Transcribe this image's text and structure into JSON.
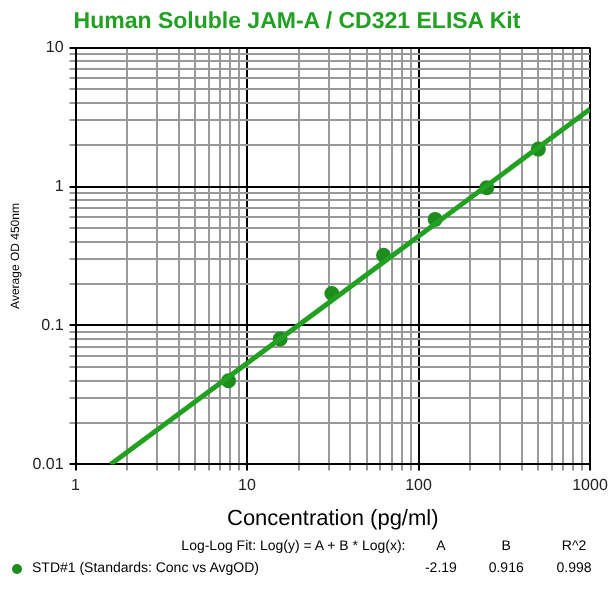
{
  "chart_data": {
    "type": "scatter",
    "title": "Human Soluble JAM-A / CD321 ELISA Kit",
    "xlabel": "Concentration (pg/ml)",
    "ylabel": "Average OD 450nm",
    "log": "xy",
    "grid": true,
    "legend": "bottom",
    "marker": "circle",
    "xlim": [
      1,
      1000
    ],
    "ylim": [
      0.01,
      10
    ],
    "xticks": [
      1,
      {
        "value": 2,
        "label": null
      },
      {
        "value": 3,
        "label": null
      },
      {
        "value": 4,
        "label": null
      },
      {
        "value": 5,
        "label": null
      },
      {
        "value": 6,
        "label": null
      },
      {
        "value": 7,
        "label": null
      },
      {
        "value": 8,
        "label": null
      },
      {
        "value": 9,
        "label": null
      },
      10,
      {
        "value": 20,
        "label": null
      },
      {
        "value": 30,
        "label": null
      },
      {
        "value": 40,
        "label": null
      },
      {
        "value": 50,
        "label": null
      },
      {
        "value": 60,
        "label": null
      },
      {
        "value": 70,
        "label": null
      },
      {
        "value": 80,
        "label": null
      },
      {
        "value": 90,
        "label": null
      },
      100,
      {
        "value": 200,
        "label": null
      },
      {
        "value": 300,
        "label": null
      },
      {
        "value": 400,
        "label": null
      },
      {
        "value": 500,
        "label": null
      },
      {
        "value": 600,
        "label": null
      },
      {
        "value": 700,
        "label": null
      },
      {
        "value": 800,
        "label": null
      },
      {
        "value": 900,
        "label": null
      },
      1000
    ],
    "yticks": [
      0.01,
      {
        "value": 0.02,
        "label": null
      },
      {
        "value": 0.03,
        "label": null
      },
      {
        "value": 0.04,
        "label": null
      },
      {
        "value": 0.05,
        "label": null
      },
      {
        "value": 0.06,
        "label": null
      },
      {
        "value": 0.07,
        "label": null
      },
      {
        "value": 0.08,
        "label": null
      },
      {
        "value": 0.09,
        "label": null
      },
      0.1,
      {
        "value": 0.2,
        "label": null
      },
      {
        "value": 0.3,
        "label": null
      },
      {
        "value": 0.4,
        "label": null
      },
      {
        "value": 0.5,
        "label": null
      },
      {
        "value": 0.6,
        "label": null
      },
      {
        "value": 0.7,
        "label": null
      },
      {
        "value": 0.8,
        "label": null
      },
      {
        "value": 0.9,
        "label": null
      },
      1,
      {
        "value": 2,
        "label": null
      },
      {
        "value": 3,
        "label": null
      },
      {
        "value": 4,
        "label": null
      },
      {
        "value": 5,
        "label": null
      },
      {
        "value": 6,
        "label": null
      },
      {
        "value": 7,
        "label": null
      },
      {
        "value": 8,
        "label": null
      },
      {
        "value": 9,
        "label": null
      },
      10
    ],
    "series": [
      {
        "type": "line",
        "color": "#22a022",
        "marker": "none",
        "x": [
          1.6,
          1000
        ],
        "values": [
          0.01,
          3.6
        ]
      },
      {
        "type": "scatter",
        "name": "STD#1 (Standards: Conc vs AvgOD)",
        "color": "#1e8c1e",
        "x": [
          7.8,
          15.6,
          31.25,
          62.5,
          125,
          250,
          500
        ],
        "values": [
          0.04,
          0.08,
          0.17,
          0.32,
          0.58,
          0.98,
          1.86
        ]
      }
    ],
    "annotations": [
      "Log-Log Fit: Log(y) = A + B * Log(x):",
      "A",
      "B",
      "R^2",
      "-2.19",
      "0.916",
      "0.998"
    ]
  }
}
